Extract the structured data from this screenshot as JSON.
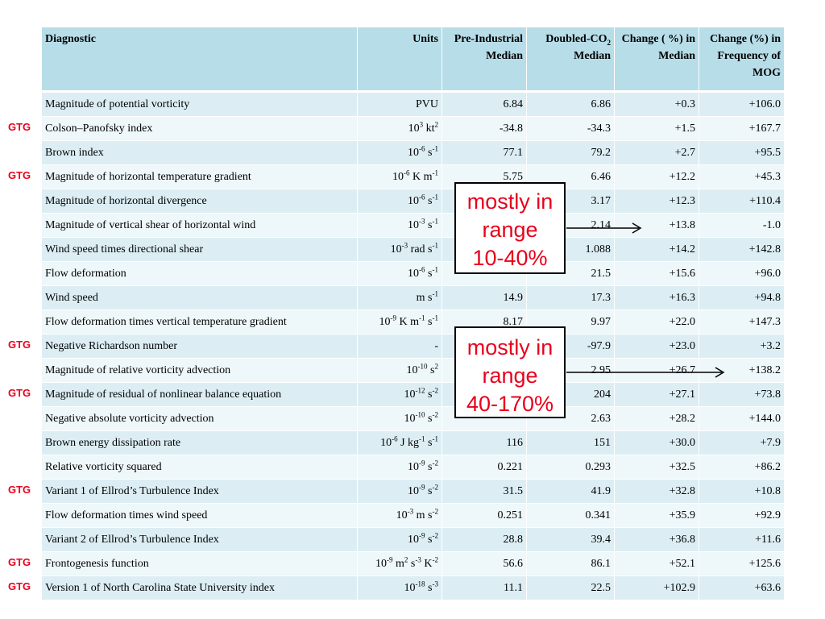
{
  "header": {
    "diagnostic": "Diagnostic",
    "units": "Units",
    "pre_industrial": "Pre-Industrial Median",
    "doubled_co2_a": "Doubled-CO",
    "doubled_co2_sub": "2",
    "doubled_co2_b": "Median",
    "change_median": "Change ( %) in Median",
    "change_freq": "Change (%) in Frequency of MOG"
  },
  "gtg_label": "GTG",
  "rows": [
    {
      "gtg": false,
      "name": "Magnitude of potential vorticity",
      "units": [
        {
          "t": "PVU"
        }
      ],
      "pre": "6.84",
      "doubled": "6.86",
      "change_median": "+0.3",
      "change_freq": "+106.0"
    },
    {
      "gtg": true,
      "name": "Colson–Panofsky index",
      "units": [
        {
          "t": "10"
        },
        {
          "sup": "3"
        },
        {
          "t": " kt"
        },
        {
          "sup": "2"
        }
      ],
      "pre": "-34.8",
      "doubled": "-34.3",
      "change_median": "+1.5",
      "change_freq": "+167.7"
    },
    {
      "gtg": false,
      "name": "Brown index",
      "units": [
        {
          "t": "10"
        },
        {
          "sup": "-6"
        },
        {
          "t": " s"
        },
        {
          "sup": "-1"
        }
      ],
      "pre": "77.1",
      "doubled": "79.2",
      "change_median": "+2.7",
      "change_freq": "+95.5"
    },
    {
      "gtg": true,
      "name": "Magnitude of horizontal temperature gradient",
      "units": [
        {
          "t": "10"
        },
        {
          "sup": "-6"
        },
        {
          "t": " K m"
        },
        {
          "sup": "-1"
        }
      ],
      "pre": "5.75",
      "doubled": "6.46",
      "change_median": "+12.2",
      "change_freq": "+45.3"
    },
    {
      "gtg": false,
      "name": "Magnitude of horizontal divergence",
      "units": [
        {
          "t": "10"
        },
        {
          "sup": "-6"
        },
        {
          "t": " s"
        },
        {
          "sup": "-1"
        }
      ],
      "pre": "",
      "doubled": "3.17",
      "change_median": "+12.3",
      "change_freq": "+110.4"
    },
    {
      "gtg": false,
      "name": "Magnitude of vertical shear of horizontal wind",
      "units": [
        {
          "t": "10"
        },
        {
          "sup": "-3"
        },
        {
          "t": " s"
        },
        {
          "sup": "-1"
        }
      ],
      "pre": "",
      "doubled": "2.14",
      "change_median": "+13.8",
      "change_freq": "-1.0"
    },
    {
      "gtg": false,
      "name": "Wind speed times directional shear",
      "units": [
        {
          "t": "10"
        },
        {
          "sup": "-3"
        },
        {
          "t": " rad s"
        },
        {
          "sup": "-1"
        }
      ],
      "pre": "",
      "doubled": "1.088",
      "change_median": "+14.2",
      "change_freq": "+142.8"
    },
    {
      "gtg": false,
      "name": "Flow deformation",
      "units": [
        {
          "t": "10"
        },
        {
          "sup": "-6"
        },
        {
          "t": " s"
        },
        {
          "sup": "-1"
        }
      ],
      "pre": "",
      "doubled": "21.5",
      "change_median": "+15.6",
      "change_freq": "+96.0"
    },
    {
      "gtg": false,
      "name": "Wind speed",
      "units": [
        {
          "t": "m s"
        },
        {
          "sup": "-1"
        }
      ],
      "pre": "14.9",
      "doubled": "17.3",
      "change_median": "+16.3",
      "change_freq": "+94.8"
    },
    {
      "gtg": false,
      "name": "Flow deformation times vertical temperature gradient",
      "units": [
        {
          "t": "10"
        },
        {
          "sup": "-9"
        },
        {
          "t": " K m"
        },
        {
          "sup": "-1"
        },
        {
          "t": " s"
        },
        {
          "sup": "-1"
        }
      ],
      "pre": "8.17",
      "doubled": "9.97",
      "change_median": "+22.0",
      "change_freq": "+147.3"
    },
    {
      "gtg": true,
      "name": "Negative Richardson number",
      "units": [
        {
          "t": "-"
        }
      ],
      "pre": "",
      "doubled": "-97.9",
      "change_median": "+23.0",
      "change_freq": "+3.2"
    },
    {
      "gtg": false,
      "name": "Magnitude of relative vorticity advection",
      "units": [
        {
          "t": "10"
        },
        {
          "sup": "-10"
        },
        {
          "t": " s"
        },
        {
          "sup": "2"
        }
      ],
      "pre": "",
      "doubled": "2.95",
      "change_median": "+26.7",
      "change_freq": "+138.2"
    },
    {
      "gtg": true,
      "name": "Magnitude of residual of nonlinear balance equation",
      "units": [
        {
          "t": "10"
        },
        {
          "sup": "-12"
        },
        {
          "t": " s"
        },
        {
          "sup": "-2"
        }
      ],
      "pre": "",
      "doubled": "204",
      "change_median": "+27.1",
      "change_freq": "+73.8"
    },
    {
      "gtg": false,
      "name": "Negative absolute vorticity advection",
      "units": [
        {
          "t": "10"
        },
        {
          "sup": "-10"
        },
        {
          "t": " s"
        },
        {
          "sup": "-2"
        }
      ],
      "pre": "",
      "doubled": "2.63",
      "change_median": "+28.2",
      "change_freq": "+144.0"
    },
    {
      "gtg": false,
      "name": "Brown energy dissipation rate",
      "units": [
        {
          "t": "10"
        },
        {
          "sup": "-6"
        },
        {
          "t": " J kg"
        },
        {
          "sup": "-1"
        },
        {
          "t": " s"
        },
        {
          "sup": "-1"
        }
      ],
      "pre": "116",
      "doubled": "151",
      "change_median": "+30.0",
      "change_freq": "+7.9"
    },
    {
      "gtg": false,
      "name": "Relative vorticity squared",
      "units": [
        {
          "t": "10"
        },
        {
          "sup": "-9"
        },
        {
          "t": " s"
        },
        {
          "sup": "-2"
        }
      ],
      "pre": "0.221",
      "doubled": "0.293",
      "change_median": "+32.5",
      "change_freq": "+86.2"
    },
    {
      "gtg": true,
      "name": "Variant 1 of Ellrod’s Turbulence Index",
      "units": [
        {
          "t": "10"
        },
        {
          "sup": "-9"
        },
        {
          "t": " s"
        },
        {
          "sup": "-2"
        }
      ],
      "pre": "31.5",
      "doubled": "41.9",
      "change_median": "+32.8",
      "change_freq": "+10.8"
    },
    {
      "gtg": false,
      "name": "Flow deformation times wind speed",
      "units": [
        {
          "t": "10"
        },
        {
          "sup": "-3"
        },
        {
          "t": " m s"
        },
        {
          "sup": "-2"
        }
      ],
      "pre": "0.251",
      "doubled": "0.341",
      "change_median": "+35.9",
      "change_freq": "+92.9"
    },
    {
      "gtg": false,
      "name": "Variant 2 of Ellrod’s Turbulence Index",
      "units": [
        {
          "t": "10"
        },
        {
          "sup": "-9"
        },
        {
          "t": " s"
        },
        {
          "sup": "-2"
        }
      ],
      "pre": "28.8",
      "doubled": "39.4",
      "change_median": "+36.8",
      "change_freq": "+11.6"
    },
    {
      "gtg": true,
      "name": "Frontogenesis function",
      "units": [
        {
          "t": "10"
        },
        {
          "sup": "-9"
        },
        {
          "t": " m"
        },
        {
          "sup": "2"
        },
        {
          "t": " s"
        },
        {
          "sup": "-3"
        },
        {
          "t": " K"
        },
        {
          "sup": "-2"
        }
      ],
      "pre": "56.6",
      "doubled": "86.1",
      "change_median": "+52.1",
      "change_freq": "+125.6"
    },
    {
      "gtg": true,
      "name": "Version 1 of North Carolina State University index",
      "units": [
        {
          "t": "10"
        },
        {
          "sup": "-18"
        },
        {
          "t": " s"
        },
        {
          "sup": "-3"
        }
      ],
      "pre": "11.1",
      "doubled": "22.5",
      "change_median": "+102.9",
      "change_freq": "+63.6"
    }
  ],
  "callouts": [
    {
      "lines": [
        "mostly in",
        "range",
        "10-40%"
      ]
    },
    {
      "lines": [
        "mostly in",
        "range",
        "40-170%"
      ]
    }
  ],
  "colors": {
    "gtg": "#e8001c",
    "header_bg": "#b7dde8",
    "row_a": "#dceef4",
    "row_b": "#eef7fa"
  }
}
